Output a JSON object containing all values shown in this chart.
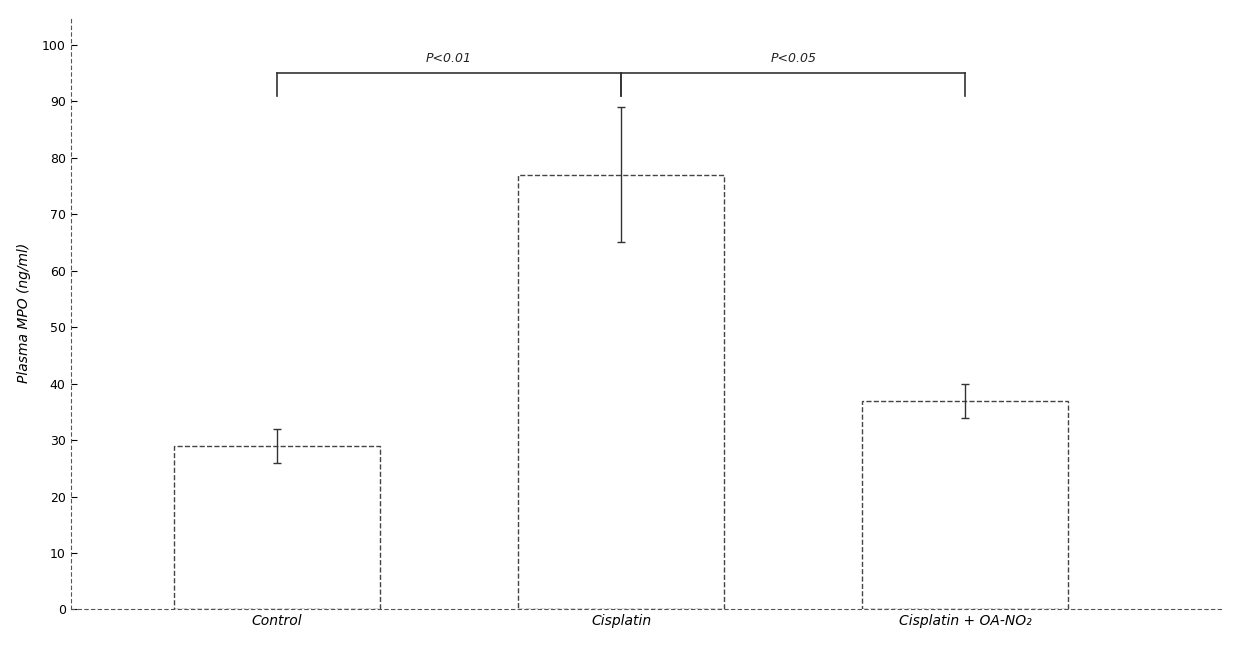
{
  "categories": [
    "Control",
    "Cisplatin",
    "Cisplatin + OA-NO₂"
  ],
  "values": [
    29,
    77,
    37
  ],
  "errors": [
    3,
    12,
    3
  ],
  "bar_color": "#ffffff",
  "bar_edgecolor": "#444444",
  "bar_linewidth": 1.0,
  "bar_linestyle": "--",
  "ylabel": "Plasma MPO (ng/ml)",
  "ylim": [
    0,
    105
  ],
  "yticks": [
    0,
    10,
    20,
    30,
    40,
    50,
    60,
    70,
    80,
    90,
    100
  ],
  "background_color": "#ffffff",
  "bracket1_label": "P<0.01",
  "bracket2_label": "P<0.05",
  "stat_fontsize": 9,
  "ylabel_fontsize": 10,
  "tick_fontsize": 9,
  "xtick_fontsize": 10,
  "errorbar_capsize": 3,
  "errorbar_color": "#333333",
  "errorbar_linewidth": 1.0,
  "bar_positions": [
    1,
    3,
    5
  ],
  "bar_width": 1.2
}
